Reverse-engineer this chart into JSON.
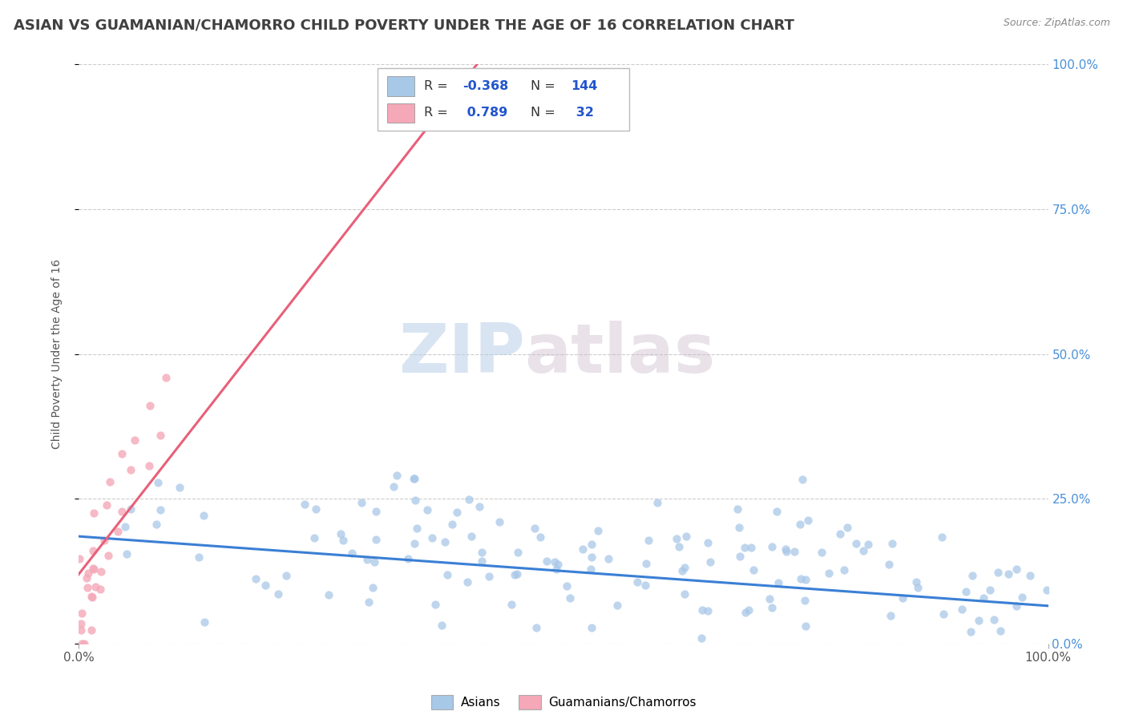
{
  "title": "ASIAN VS GUAMANIAN/CHAMORRO CHILD POVERTY UNDER THE AGE OF 16 CORRELATION CHART",
  "source": "Source: ZipAtlas.com",
  "ylabel": "Child Poverty Under the Age of 16",
  "yticks": [
    "0.0%",
    "25.0%",
    "50.0%",
    "75.0%",
    "100.0%"
  ],
  "ytick_vals": [
    0.0,
    0.25,
    0.5,
    0.75,
    1.0
  ],
  "xtick_left": "0.0%",
  "xtick_right": "100.0%",
  "xlim": [
    0.0,
    1.0
  ],
  "ylim": [
    0.0,
    1.0
  ],
  "legend_labels": [
    "Asians",
    "Guamanians/Chamorros"
  ],
  "asian_color": "#a8c8e8",
  "guam_color": "#f4a8b8",
  "asian_line_color": "#3a7fd5",
  "guam_line_color": "#e8607a",
  "R_asian": -0.368,
  "N_asian": 144,
  "R_guam": 0.789,
  "N_guam": 32,
  "watermark_zip": "ZIP",
  "watermark_atlas": "atlas",
  "background_color": "#ffffff",
  "grid_color": "#cccccc",
  "title_color": "#404040",
  "tick_label_color": "#4a90d9",
  "stats_text_color": "#2255cc",
  "title_fontsize": 13,
  "axis_label_fontsize": 10,
  "tick_fontsize": 11,
  "source_fontsize": 9
}
